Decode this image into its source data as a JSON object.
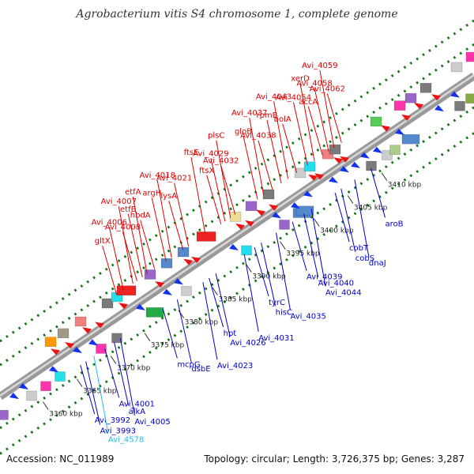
{
  "header": {
    "title": "Agrobacterium vitis S4 chromosome 1, complete genome"
  },
  "footer": {
    "accession": "Accession: NC_011989",
    "summary": "Topology: circular; Length: 3,726,375 bp; Genes: 3,287"
  },
  "colors": {
    "forward_label": "#dd0000",
    "reverse_label": "#0000cc",
    "special_label": "#22bbee",
    "axis": "#999999",
    "dots": "#117711",
    "gene_red": "#ee1111",
    "gene_blue": "#1133ee"
  },
  "scale": {
    "unit": "kbp",
    "ticks": [
      {
        "value": 3360,
        "label": "3360 kbp"
      },
      {
        "value": 3365,
        "label": "3365 kbp"
      },
      {
        "value": 3370,
        "label": "3370 kbp"
      },
      {
        "value": 3375,
        "label": "3375 kbp"
      },
      {
        "value": 3380,
        "label": "3380 kbp"
      },
      {
        "value": 3385,
        "label": "3385 kbp"
      },
      {
        "value": 3390,
        "label": "3390 kbp"
      },
      {
        "value": 3395,
        "label": "3395 kbp"
      },
      {
        "value": 3400,
        "label": "3400 kbp"
      },
      {
        "value": 3405,
        "label": "3405 kbp"
      },
      {
        "value": 3410,
        "label": "3410 kbp"
      }
    ]
  },
  "labels_forward": [
    {
      "text": "gltX",
      "kbp": 3374.8
    },
    {
      "text": "Avi_4006",
      "kbp": 3375.8
    },
    {
      "text": "Avi_4007",
      "kbp": 3377.2
    },
    {
      "text": "Avi_4008",
      "kbp": 3377.8
    },
    {
      "text": "etfB",
      "kbp": 3378.6
    },
    {
      "text": "etfA",
      "kbp": 3379.3
    },
    {
      "text": "hbdA",
      "kbp": 3380.4
    },
    {
      "text": "argH",
      "kbp": 3382.1
    },
    {
      "text": "Avi_4018",
      "kbp": 3382.9
    },
    {
      "text": "lysA",
      "kbp": 3384.6
    },
    {
      "text": "Avi_4021",
      "kbp": 3385.4
    },
    {
      "text": "ftsE",
      "kbp": 3387.9
    },
    {
      "text": "ftsX",
      "kbp": 3390.2
    },
    {
      "text": "Avi_4029",
      "kbp": 3390.8
    },
    {
      "text": "plsC",
      "kbp": 3391.6
    },
    {
      "text": "Avi_4032",
      "kbp": 3392.3
    },
    {
      "text": "gloB",
      "kbp": 3395.6
    },
    {
      "text": "Avi_4037",
      "kbp": 3396.5
    },
    {
      "text": "Avi_4038",
      "kbp": 3397.8
    },
    {
      "text": "rpmB",
      "kbp": 3399.1
    },
    {
      "text": "Avi_4043",
      "kbp": 3400.1
    },
    {
      "text": "bolA",
      "kbp": 3401.4
    },
    {
      "text": "Avi_4054",
      "kbp": 3403.0
    },
    {
      "text": "xerD",
      "kbp": 3404.0
    },
    {
      "text": "accA",
      "kbp": 3405.2
    },
    {
      "text": "Avi_4058",
      "kbp": 3406.1
    },
    {
      "text": "Avi_4059",
      "kbp": 3406.9
    },
    {
      "text": "Avi_4062",
      "kbp": 3408.0
    }
  ],
  "labels_reverse": [
    {
      "text": "Avi_3992",
      "kbp": 3366.3
    },
    {
      "text": "Avi_3993",
      "kbp": 3367.1
    },
    {
      "text": "Avi_4578",
      "kbp": 3368.3,
      "special": true
    },
    {
      "text": "Avi_4001",
      "kbp": 3369.9
    },
    {
      "text": "alkA",
      "kbp": 3371.3
    },
    {
      "text": "Avi_4005",
      "kbp": 3372.2
    },
    {
      "text": "mcpG",
      "kbp": 3378.5
    },
    {
      "text": "dsbE",
      "kbp": 3380.6
    },
    {
      "text": "Avi_4023",
      "kbp": 3384.4
    },
    {
      "text": "hpt",
      "kbp": 3385.3
    },
    {
      "text": "Avi_4026",
      "kbp": 3386.3
    },
    {
      "text": "Avi_4031",
      "kbp": 3390.5
    },
    {
      "text": "tyrC",
      "kbp": 3392.0
    },
    {
      "text": "hisC",
      "kbp": 3393.0
    },
    {
      "text": "Avi_4035",
      "kbp": 3395.2
    },
    {
      "text": "Avi_4039",
      "kbp": 3397.6
    },
    {
      "text": "Avi_4040",
      "kbp": 3399.3
    },
    {
      "text": "Avi_4044",
      "kbp": 3400.4
    },
    {
      "text": "cobT",
      "kbp": 3403.9
    },
    {
      "text": "cobS",
      "kbp": 3404.8
    },
    {
      "text": "dnaJ",
      "kbp": 3406.8
    },
    {
      "text": "aroB",
      "kbp": 3409.2
    }
  ]
}
